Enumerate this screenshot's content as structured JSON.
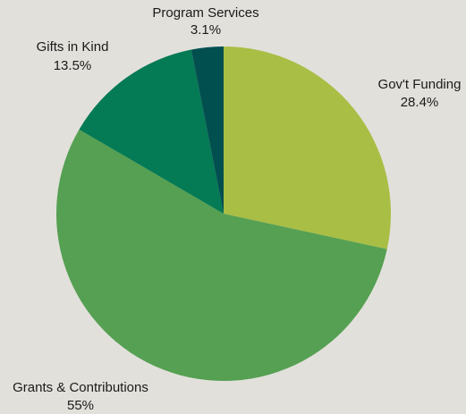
{
  "chart_data": {
    "type": "pie",
    "start": "top",
    "direction": "clockwise",
    "slices": [
      {
        "label": "Gov't Funding",
        "value_label": "28.4%",
        "value": 28.4,
        "color": "#a9be45"
      },
      {
        "label": "Grants & Contributions",
        "value_label": "55%",
        "value": 55.0,
        "color": "#55a052"
      },
      {
        "label": "Gifts in Kind",
        "value_label": "13.5%",
        "value": 13.5,
        "color": "#047a55"
      },
      {
        "label": "Program Services",
        "value_label": "3.1%",
        "value": 3.1,
        "color": "#024f4f"
      }
    ]
  }
}
